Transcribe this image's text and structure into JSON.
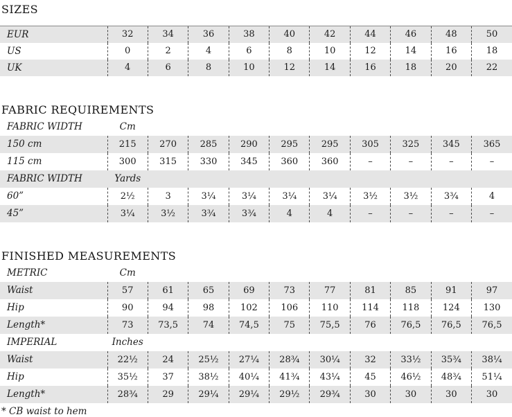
{
  "colors": {
    "row_shade": "#e5e5e5",
    "text": "#1b1b1b",
    "dash_line": "#474747",
    "table_top_border": "#8a8a8a"
  },
  "footnote": "* CB waist to hem",
  "sizes": {
    "title": "SIZES",
    "rows": [
      {
        "type": "data",
        "label": "EUR",
        "values": [
          "32",
          "34",
          "36",
          "38",
          "40",
          "42",
          "44",
          "46",
          "48",
          "50"
        ]
      },
      {
        "type": "data",
        "label": "US",
        "values": [
          "0",
          "2",
          "4",
          "6",
          "8",
          "10",
          "12",
          "14",
          "16",
          "18"
        ]
      },
      {
        "type": "data",
        "label": "UK",
        "values": [
          "4",
          "6",
          "8",
          "10",
          "12",
          "14",
          "16",
          "18",
          "20",
          "22"
        ]
      }
    ]
  },
  "fabric": {
    "title": "FABRIC REQUIREMENTS",
    "rows": [
      {
        "type": "header",
        "label": "FABRIC WIDTH",
        "unit": "Cm"
      },
      {
        "type": "data",
        "label": "150 cm",
        "values": [
          "215",
          "270",
          "285",
          "290",
          "295",
          "295",
          "305",
          "325",
          "345",
          "365"
        ]
      },
      {
        "type": "data",
        "label": "115 cm",
        "values": [
          "300",
          "315",
          "330",
          "345",
          "360",
          "360",
          "–",
          "–",
          "–",
          "–"
        ]
      },
      {
        "type": "header",
        "label": "FABRIC WIDTH",
        "unit": "Yards"
      },
      {
        "type": "data",
        "label": "60”",
        "values": [
          "2½",
          "3",
          "3¼",
          "3¼",
          "3¼",
          "3¼",
          "3½",
          "3½",
          "3¾",
          "4"
        ]
      },
      {
        "type": "data",
        "label": "45”",
        "values": [
          "3¼",
          "3½",
          "3¾",
          "3¾",
          "4",
          "4",
          "–",
          "–",
          "–",
          "–"
        ]
      }
    ]
  },
  "finished": {
    "title": "FINISHED MEASUREMENTS",
    "rows": [
      {
        "type": "header",
        "label": "METRIC",
        "unit": "Cm"
      },
      {
        "type": "data",
        "label": "Waist",
        "values": [
          "57",
          "61",
          "65",
          "69",
          "73",
          "77",
          "81",
          "85",
          "91",
          "97"
        ]
      },
      {
        "type": "data",
        "label": "Hip",
        "values": [
          "90",
          "94",
          "98",
          "102",
          "106",
          "110",
          "114",
          "118",
          "124",
          "130"
        ]
      },
      {
        "type": "data",
        "label": "Length*",
        "values": [
          "73",
          "73,5",
          "74",
          "74,5",
          "75",
          "75,5",
          "76",
          "76,5",
          "76,5",
          "76,5"
        ]
      },
      {
        "type": "header",
        "label": "IMPERIAL",
        "unit": "Inches"
      },
      {
        "type": "data",
        "label": "Waist",
        "values": [
          "22½",
          "24",
          "25½",
          "27¼",
          "28¾",
          "30¼",
          "32",
          "33½",
          "35¾",
          "38¼"
        ]
      },
      {
        "type": "data",
        "label": "Hip",
        "values": [
          "35½",
          "37",
          "38½",
          "40¼",
          "41¾",
          "43¼",
          "45",
          "46½",
          "48¾",
          "51¼"
        ]
      },
      {
        "type": "data",
        "label": "Length*",
        "values": [
          "28¾",
          "29",
          "29¼",
          "29¼",
          "29½",
          "29¾",
          "30",
          "30",
          "30",
          "30"
        ]
      }
    ]
  }
}
